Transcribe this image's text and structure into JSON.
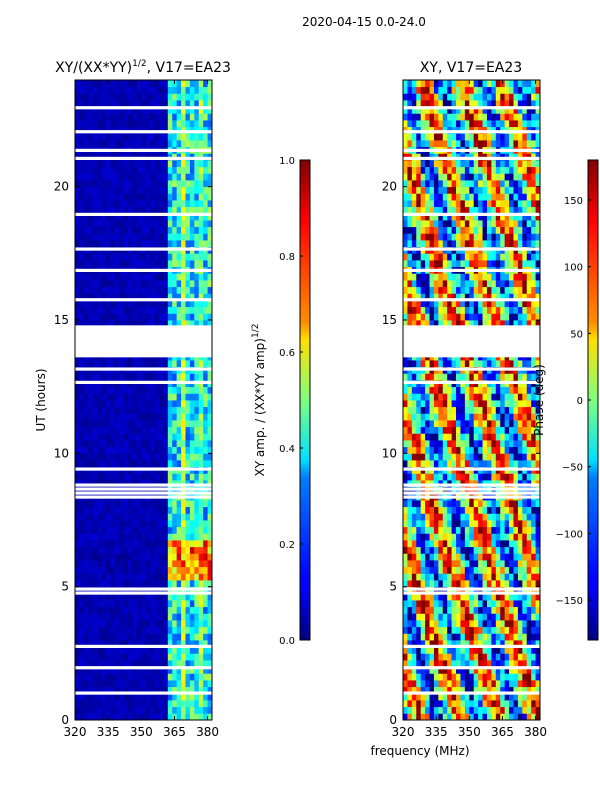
{
  "suptitle": "2020-04-15 0.0-24.0",
  "chart_data": [
    {
      "type": "heatmap",
      "title_main": "XY/(XX*YY)",
      "title_exp": "1/2",
      "title_tail": ", V17=EA23",
      "ylabel": "UT (hours)",
      "xlabel": "",
      "xlim": [
        320,
        382
      ],
      "ylim": [
        0,
        24
      ],
      "x_ticks": [
        "320",
        "335",
        "350",
        "365",
        "380"
      ],
      "x_tick_values": [
        320,
        335,
        350,
        365,
        380
      ],
      "y_ticks": [
        "0",
        "5",
        "10",
        "15",
        "20"
      ],
      "y_tick_values": [
        0,
        5,
        10,
        15,
        20
      ],
      "colormap": "jet",
      "value_range": [
        0.0,
        1.0
      ],
      "blank_rows_hours": [
        0.95,
        1.9,
        2.7,
        4.7,
        4.85,
        8.3,
        8.45,
        8.6,
        8.75,
        9.35,
        12.6,
        13.1,
        13.7,
        13.9,
        14.1,
        14.3,
        14.6,
        15.7,
        16.8,
        17.6,
        18.9,
        21.0,
        21.3,
        22.0,
        22.9
      ]
    },
    {
      "type": "heatmap",
      "title_main": "XY, V17=EA23",
      "ylabel": "",
      "xlabel": "frequency (MHz)",
      "xlim": [
        320,
        382
      ],
      "ylim": [
        0,
        24
      ],
      "x_ticks": [
        "320",
        "335",
        "350",
        "365",
        "380"
      ],
      "x_tick_values": [
        320,
        335,
        350,
        365,
        380
      ],
      "y_ticks": [
        "0",
        "5",
        "10",
        "15",
        "20"
      ],
      "y_tick_values": [
        0,
        5,
        10,
        15,
        20
      ],
      "colormap": "jet",
      "value_range": [
        -180,
        180
      ],
      "blank_rows_hours": [
        0.95,
        1.9,
        2.7,
        4.7,
        4.85,
        8.3,
        8.45,
        8.6,
        8.75,
        9.35,
        12.6,
        13.1,
        13.7,
        13.9,
        14.1,
        14.3,
        14.6,
        15.7,
        16.8,
        17.6,
        18.9,
        21.0,
        21.3,
        22.0,
        22.9
      ]
    }
  ],
  "colorbars": [
    {
      "label_main": "XY amp. / (XX*YY amp)",
      "label_exp": "1/2",
      "range": [
        0.0,
        1.0
      ],
      "ticks": [
        "0.0",
        "0.2",
        "0.4",
        "0.6",
        "0.8",
        "1.0"
      ],
      "tick_values": [
        0.0,
        0.2,
        0.4,
        0.6,
        0.8,
        1.0
      ]
    },
    {
      "label_main": "Phase (deg)",
      "range": [
        -180,
        180
      ],
      "ticks": [
        "−150",
        "−100",
        "−50",
        "0",
        "50",
        "100",
        "150"
      ],
      "tick_values": [
        -150,
        -100,
        -50,
        0,
        50,
        100,
        150
      ]
    }
  ]
}
